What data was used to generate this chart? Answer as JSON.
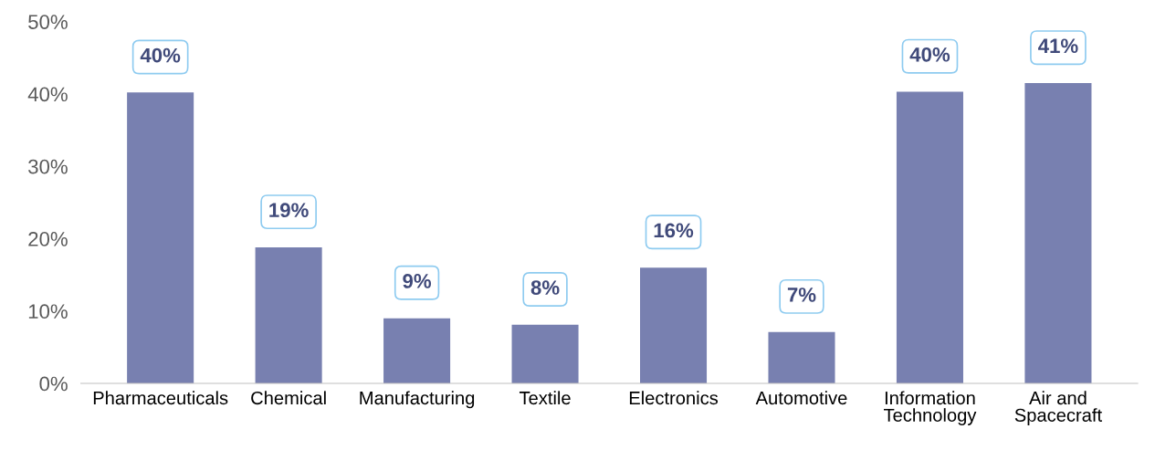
{
  "chart_data": {
    "type": "bar",
    "categories": [
      "Pharmaceuticals",
      "Chemical",
      "Manufacturing",
      "Textile",
      "Electronics",
      "Automotive",
      "Information\nTechnology",
      "Air and\nSpacecraft"
    ],
    "values": [
      40.2,
      18.8,
      9.0,
      8.1,
      16.0,
      7.1,
      40.3,
      41.5
    ],
    "value_labels": [
      "40%",
      "19%",
      "9%",
      "8%",
      "16%",
      "7%",
      "40%",
      "41%"
    ],
    "color": "#7880b0",
    "ylim": [
      0,
      50
    ],
    "yticks": [
      {
        "value": 0,
        "label": "0%"
      },
      {
        "value": 10,
        "label": "10%"
      },
      {
        "value": 20,
        "label": "20%"
      },
      {
        "value": 30,
        "label": "30%"
      },
      {
        "value": 40,
        "label": "40%"
      },
      {
        "value": 50,
        "label": "50%"
      }
    ],
    "grid": false,
    "legend": false
  }
}
